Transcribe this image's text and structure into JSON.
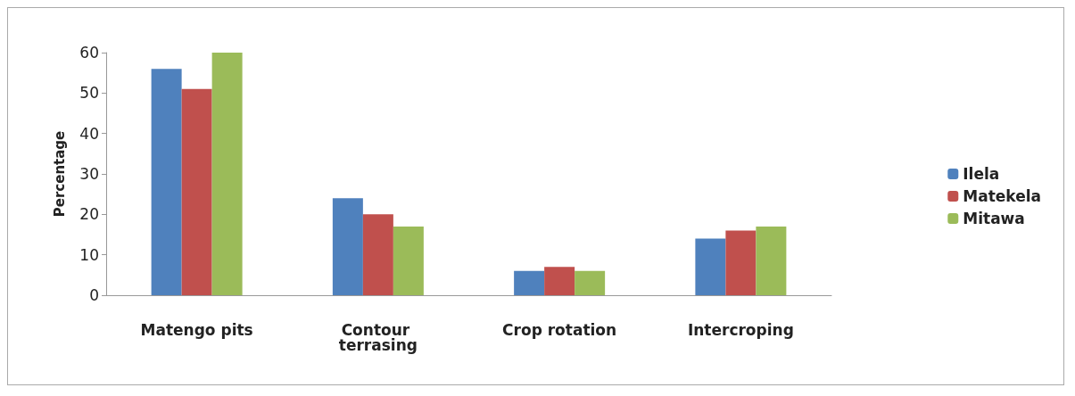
{
  "chart_data": {
    "type": "bar",
    "ylabel": "Percentage",
    "categories": [
      "Matengo pits",
      "Contour terrasing",
      "Crop rotation",
      "Intercroping"
    ],
    "series": [
      {
        "name": "Ilela",
        "color": "#4f81bd",
        "values": [
          56,
          24,
          6,
          14
        ]
      },
      {
        "name": "Matekela",
        "color": "#c0504d",
        "values": [
          51,
          20,
          7,
          16
        ]
      },
      {
        "name": "Mitawa",
        "color": "#9bbb59",
        "values": [
          60,
          17,
          6,
          17
        ]
      }
    ],
    "ylim": [
      0,
      60
    ],
    "yticks": [
      0,
      10,
      20,
      30,
      40,
      50,
      60
    ],
    "grid": false,
    "legend": "right"
  }
}
